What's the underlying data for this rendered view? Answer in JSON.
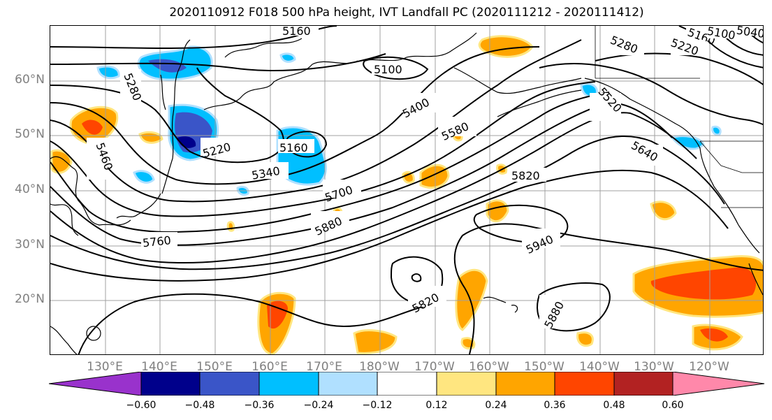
{
  "title": "2020110912 F018 500 hPa height, IVT Landfall PC (2020111212 - 2020111412)",
  "lat_labels": [
    "60°N",
    "50°N",
    "40°N",
    "30°N",
    "20°N"
  ],
  "lon_labels": [
    "130°E",
    "140°E",
    "150°E",
    "160°E",
    "170°E",
    "180°W",
    "170°W",
    "160°W",
    "150°W",
    "140°W",
    "130°W",
    "120°W"
  ],
  "colorbar": {
    "ticks": [
      "−0.60",
      "−0.48",
      "−0.36",
      "−0.24",
      "−0.12",
      "0.12",
      "0.24",
      "0.36",
      "0.48",
      "0.60"
    ],
    "colors": [
      "#9932cc",
      "#00008b",
      "#3a55c8",
      "#00bfff",
      "#b0e0ff",
      "#ffffff",
      "#ffe680",
      "#ffa500",
      "#ff4500",
      "#b22222",
      "#ff88aa"
    ]
  },
  "contour_labels": {
    "l5160_top": "5160",
    "l5100_ak": "5100",
    "l5160_ne": "5160",
    "l5100_ne": "5100",
    "l5040_ne": "5040",
    "l5280_ne": "5280",
    "l5220_ne": "5220",
    "l5280_w": "5280",
    "l5400": "5400",
    "l5520": "5520",
    "l5580": "5580",
    "l5220_c": "5220",
    "l5160_c": "5160",
    "l5340": "5340",
    "l5460": "5460",
    "l5640": "5640",
    "l5700": "5700",
    "l5820_n": "5820",
    "l5880_c": "5880",
    "l5760": "5760",
    "l5940": "5940",
    "l5820_s": "5820",
    "l5880_s": "5880"
  }
}
